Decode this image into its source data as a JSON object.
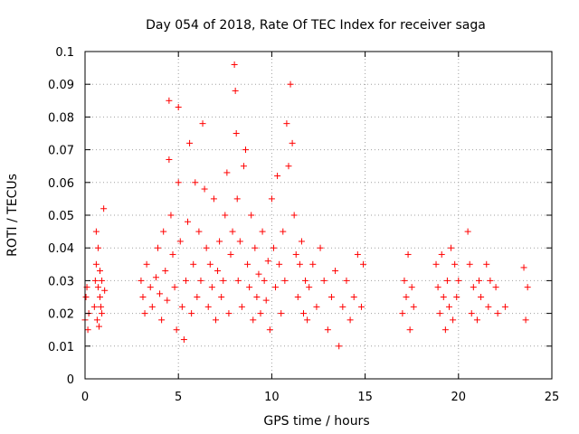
{
  "chart_data": {
    "type": "scatter",
    "title": "Day 054 of 2018, Rate Of TEC Index for receiver saga",
    "xlabel": "GPS time / hours",
    "ylabel": "ROTI / TECUs",
    "xlim": [
      0,
      25
    ],
    "ylim": [
      0,
      0.1
    ],
    "x_ticks": [
      0,
      5,
      10,
      15,
      20,
      25
    ],
    "x_tick_labels": [
      "0",
      "5",
      "10",
      "15",
      "20",
      "25"
    ],
    "y_ticks": [
      0,
      0.01,
      0.02,
      0.03,
      0.04,
      0.05,
      0.06,
      0.07,
      0.08,
      0.09,
      0.1
    ],
    "y_tick_labels": [
      "0",
      "0.01",
      "0.02",
      "0.03",
      "0.04",
      "0.05",
      "0.06",
      "0.07",
      "0.08",
      "0.09",
      "0.1"
    ],
    "grid": true,
    "marker": "+",
    "color": "#ff0000",
    "series": [
      {
        "name": "ROTI",
        "x": [
          0.0,
          0.05,
          0.1,
          0.15,
          0.2,
          0.5,
          0.55,
          0.6,
          0.6,
          0.65,
          0.7,
          0.7,
          0.75,
          0.8,
          0.8,
          0.85,
          0.9,
          0.9,
          1.0,
          1.05,
          3.0,
          3.1,
          3.2,
          3.3,
          3.5,
          3.6,
          3.8,
          3.9,
          4.0,
          4.1,
          4.2,
          4.3,
          4.4,
          4.5,
          4.5,
          4.6,
          4.7,
          4.8,
          4.9,
          5.0,
          5.0,
          5.1,
          5.2,
          5.3,
          5.4,
          5.5,
          5.6,
          5.7,
          5.8,
          5.9,
          6.0,
          6.1,
          6.2,
          6.3,
          6.4,
          6.5,
          6.6,
          6.7,
          6.8,
          6.9,
          7.0,
          7.1,
          7.2,
          7.3,
          7.4,
          7.5,
          7.6,
          7.7,
          7.8,
          7.9,
          8.0,
          8.05,
          8.1,
          8.15,
          8.2,
          8.3,
          8.4,
          8.5,
          8.6,
          8.7,
          8.8,
          8.9,
          9.0,
          9.1,
          9.2,
          9.3,
          9.4,
          9.5,
          9.6,
          9.7,
          9.8,
          9.9,
          10.0,
          10.1,
          10.2,
          10.3,
          10.4,
          10.5,
          10.6,
          10.7,
          10.8,
          10.9,
          11.0,
          11.1,
          11.2,
          11.3,
          11.4,
          11.5,
          11.6,
          11.7,
          11.8,
          11.9,
          12.0,
          12.2,
          12.4,
          12.6,
          12.8,
          13.0,
          13.2,
          13.4,
          13.6,
          13.8,
          14.0,
          14.2,
          14.4,
          14.6,
          14.8,
          14.9,
          17.0,
          17.1,
          17.2,
          17.3,
          17.4,
          17.5,
          17.6,
          18.8,
          18.9,
          19.0,
          19.1,
          19.2,
          19.3,
          19.4,
          19.5,
          19.6,
          19.7,
          19.8,
          19.9,
          20.0,
          20.5,
          20.6,
          20.7,
          20.8,
          21.0,
          21.1,
          21.2,
          21.5,
          21.6,
          21.7,
          22.0,
          22.1,
          22.5,
          23.5,
          23.6,
          23.7
        ],
        "y": [
          0.018,
          0.025,
          0.028,
          0.015,
          0.02,
          0.022,
          0.03,
          0.045,
          0.035,
          0.018,
          0.028,
          0.04,
          0.016,
          0.025,
          0.033,
          0.022,
          0.03,
          0.02,
          0.052,
          0.027,
          0.03,
          0.025,
          0.02,
          0.035,
          0.028,
          0.022,
          0.031,
          0.04,
          0.026,
          0.018,
          0.045,
          0.033,
          0.024,
          0.085,
          0.067,
          0.05,
          0.038,
          0.028,
          0.015,
          0.083,
          0.06,
          0.042,
          0.022,
          0.012,
          0.03,
          0.048,
          0.072,
          0.02,
          0.035,
          0.06,
          0.025,
          0.045,
          0.03,
          0.078,
          0.058,
          0.04,
          0.022,
          0.035,
          0.028,
          0.055,
          0.018,
          0.033,
          0.042,
          0.025,
          0.03,
          0.05,
          0.063,
          0.02,
          0.038,
          0.045,
          0.096,
          0.088,
          0.075,
          0.055,
          0.03,
          0.042,
          0.022,
          0.065,
          0.07,
          0.035,
          0.028,
          0.05,
          0.018,
          0.04,
          0.025,
          0.032,
          0.02,
          0.045,
          0.03,
          0.024,
          0.036,
          0.015,
          0.055,
          0.04,
          0.028,
          0.062,
          0.035,
          0.02,
          0.045,
          0.03,
          0.078,
          0.065,
          0.09,
          0.072,
          0.05,
          0.038,
          0.025,
          0.035,
          0.042,
          0.02,
          0.03,
          0.018,
          0.028,
          0.035,
          0.022,
          0.04,
          0.03,
          0.015,
          0.025,
          0.033,
          0.01,
          0.022,
          0.03,
          0.018,
          0.025,
          0.038,
          0.022,
          0.035,
          0.02,
          0.03,
          0.025,
          0.038,
          0.015,
          0.028,
          0.022,
          0.035,
          0.028,
          0.02,
          0.038,
          0.025,
          0.015,
          0.03,
          0.022,
          0.04,
          0.018,
          0.035,
          0.025,
          0.03,
          0.045,
          0.035,
          0.02,
          0.028,
          0.018,
          0.03,
          0.025,
          0.035,
          0.022,
          0.03,
          0.028,
          0.02,
          0.022,
          0.034,
          0.018,
          0.028
        ]
      }
    ]
  }
}
